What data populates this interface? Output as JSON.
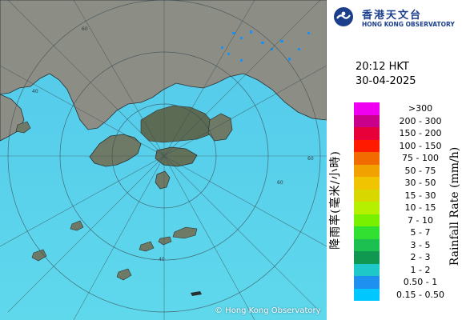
{
  "copyright": "© Hong Kong Observatory",
  "logo": {
    "name_cn": "香港天文台",
    "name_en": "HONG KONG OBSERVATORY"
  },
  "time": "20:12 HKT",
  "date": "30-04-2025",
  "map": {
    "range_rings_km": [
      20,
      40,
      60
    ],
    "ring_labels": [
      "40",
      "60",
      "60",
      "40",
      "60"
    ],
    "land_color": "#8a8c82",
    "sea_color": "#4fc9ea"
  },
  "legend": {
    "title_cn": "降雨率(毫米/小時)",
    "title_en": "Rainfall Rate (mm/h)",
    "items": [
      {
        "label": ">300",
        "color": "#f000f0"
      },
      {
        "label": "200 - 300",
        "color": "#c8008c"
      },
      {
        "label": "150 - 200",
        "color": "#e8003a"
      },
      {
        "label": "100 - 150",
        "color": "#ff1a00"
      },
      {
        "label": "75 - 100",
        "color": "#f26b00"
      },
      {
        "label": "50 - 75",
        "color": "#f2a200"
      },
      {
        "label": "30 - 50",
        "color": "#f0c400"
      },
      {
        "label": "15 - 30",
        "color": "#d8d800"
      },
      {
        "label": "10 - 15",
        "color": "#b4f000"
      },
      {
        "label": "7 - 10",
        "color": "#78f000"
      },
      {
        "label": "5 - 7",
        "color": "#32e032"
      },
      {
        "label": "3 - 5",
        "color": "#1cc050"
      },
      {
        "label": "2 - 3",
        "color": "#109850"
      },
      {
        "label": "1 - 2",
        "color": "#1ec8c8"
      },
      {
        "label": "0.50 - 1",
        "color": "#1e90f0"
      },
      {
        "label": "0.15 - 0.50",
        "color": "#00c8ff"
      }
    ]
  }
}
